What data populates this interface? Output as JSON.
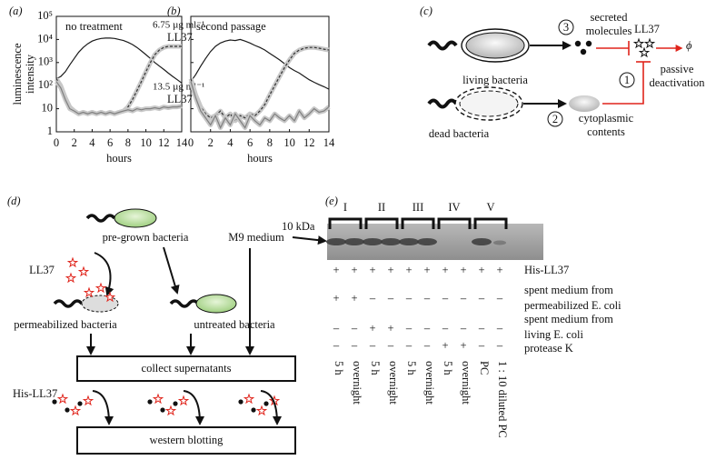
{
  "chart_data": [
    {
      "type": "line",
      "panel_label": "(a)",
      "xlabel": "hours",
      "ylabel": [
        "luminescence",
        "intensity"
      ],
      "log_y": true,
      "x": [
        0,
        0.5,
        1,
        1.5,
        2,
        2.5,
        3,
        3.5,
        4,
        4.5,
        5,
        5.5,
        6,
        6.5,
        7,
        7.5,
        8,
        8.5,
        9,
        9.5,
        10,
        10.5,
        11,
        11.5,
        12,
        12.5,
        13,
        13.5,
        14
      ],
      "xlim": [
        0,
        14
      ],
      "xticks": [
        0,
        2,
        4,
        6,
        8,
        10,
        12,
        14
      ],
      "ylim": [
        1,
        100000
      ],
      "yticks": [
        1,
        10,
        {
          "value": 100,
          "label": "10²"
        },
        {
          "value": 1000,
          "label": "10³"
        },
        {
          "value": 10000,
          "label": "10⁴"
        },
        {
          "value": 100000,
          "label": "10⁵"
        }
      ],
      "series": [
        {
          "labels": [
            "no treatment"
          ],
          "color": "#1a1a1a",
          "values": [
            200,
            250,
            400,
            800,
            1500,
            2800,
            4500,
            6500,
            8500,
            10000,
            11000,
            11500,
            11500,
            11000,
            10000,
            9000,
            7500,
            6000,
            4500,
            3200,
            2200,
            1500,
            1000,
            700,
            500,
            350,
            250,
            180,
            130
          ]
        },
        {
          "labels": [
            "6.75 µg ml⁻¹",
            "LL37"
          ],
          "color": "#333333",
          "dashed": true,
          "shaded": true,
          "values": [
            200,
            100,
            30,
            12,
            8,
            6,
            7,
            6,
            7,
            6,
            7,
            6,
            7,
            6,
            7,
            8,
            12,
            25,
            60,
            150,
            400,
            1000,
            2200,
            3500,
            4500,
            5000,
            5000,
            5000,
            5000
          ]
        },
        {
          "labels": [
            "13.5 µg ml⁻¹",
            "LL37"
          ],
          "color": "#808080",
          "shaded": true,
          "values": [
            150,
            80,
            25,
            10,
            8,
            6,
            7,
            6,
            7,
            6,
            7,
            6,
            7,
            6,
            7,
            8,
            9,
            8,
            10,
            9,
            10,
            10,
            11,
            10,
            12,
            11,
            12,
            12,
            13
          ]
        }
      ]
    },
    {
      "type": "line",
      "panel_label": "(b)",
      "annotation": "second passage",
      "xlabel": "hours",
      "log_y": true,
      "ytick_labels": false,
      "x": [
        0,
        0.5,
        1,
        1.5,
        2,
        2.5,
        3,
        3.5,
        4,
        4.5,
        5,
        5.5,
        6,
        6.5,
        7,
        7.5,
        8,
        8.5,
        9,
        9.5,
        10,
        10.5,
        11,
        11.5,
        12,
        12.5,
        13,
        13.5,
        14
      ],
      "xlim": [
        0,
        14
      ],
      "xticks": [
        0,
        2,
        4,
        6,
        8,
        10,
        12,
        14
      ],
      "ylim": [
        1,
        100000
      ],
      "yticks": [
        1,
        10,
        100,
        1000,
        10000,
        100000
      ],
      "series": [
        {
          "color": "#1a1a1a",
          "values": [
            150,
            300,
            700,
            1500,
            3000,
            5000,
            7000,
            8500,
            9500,
            9000,
            10000,
            8500,
            7000,
            5500,
            4500,
            3500,
            2500,
            1800,
            1300,
            900,
            600,
            450,
            350,
            250,
            180,
            140,
            110,
            90,
            70
          ]
        },
        {
          "color": "#333333",
          "dashed": true,
          "shaded": true,
          "values": [
            200,
            40,
            12,
            6,
            4,
            5,
            8,
            4,
            6,
            3,
            5,
            4,
            6,
            5,
            8,
            15,
            40,
            100,
            250,
            600,
            1300,
            2500,
            3500,
            4200,
            4500,
            4500,
            4200,
            3800,
            3500
          ]
        },
        {
          "color": "#808080",
          "shaded": true,
          "values": [
            150,
            30,
            8,
            4,
            2,
            5,
            1.5,
            4,
            2,
            6,
            3,
            1.5,
            5,
            3,
            2,
            4,
            3,
            6,
            4,
            3,
            5,
            3,
            8,
            4,
            6,
            10,
            7,
            8,
            12
          ]
        }
      ]
    }
  ],
  "panel_c": {
    "label": "(c)",
    "secreted": [
      "secreted",
      "molecules"
    ],
    "ll37": "LL37",
    "phi": "ϕ",
    "living": "living bacteria",
    "deactivation": [
      "passive",
      "deactivation"
    ],
    "dead": "dead bacteria",
    "cytoplasmic": [
      "cytoplasmic",
      "contents"
    ],
    "steps": [
      "1",
      "2",
      "3"
    ]
  },
  "panel_d": {
    "label": "(d)",
    "pregrown": "pre-grown bacteria",
    "m9": "M9 medium",
    "ll37": "LL37",
    "permeabilized": "permeabilized bacteria",
    "untreated": "untreated bacteria",
    "collect": "collect supernatants",
    "his": "His-LL37",
    "western": "western blotting"
  },
  "panel_e": {
    "label": "(e)",
    "groups": [
      "I",
      "II",
      "III",
      "IV",
      "V"
    ],
    "marker": "10 kDa",
    "rows": [
      {
        "label": [
          "His-LL37"
        ],
        "signs": [
          "+",
          "+",
          "+",
          "+",
          "+",
          "+",
          "+",
          "+",
          "+",
          "+"
        ]
      },
      {
        "label": [
          "spent medium from",
          "permeabilized E. coli"
        ],
        "signs": [
          "+",
          "+",
          "–",
          "–",
          "–",
          "–",
          "–",
          "–",
          "–",
          "–"
        ]
      },
      {
        "label": [
          "spent medium from",
          "living E. coli"
        ],
        "signs": [
          "–",
          "–",
          "+",
          "+",
          "–",
          "–",
          "–",
          "–",
          "–",
          "–"
        ]
      },
      {
        "label": [
          "protease K"
        ],
        "signs": [
          "–",
          "–",
          "–",
          "–",
          "–",
          "–",
          "+",
          "+",
          "–",
          "–"
        ]
      }
    ],
    "lanes": [
      "5 h",
      "overnight",
      "5 h",
      "overnight",
      "5 h",
      "overnight",
      "5 h",
      "overnight",
      "PC",
      "1 : 10 diluted PC"
    ]
  }
}
